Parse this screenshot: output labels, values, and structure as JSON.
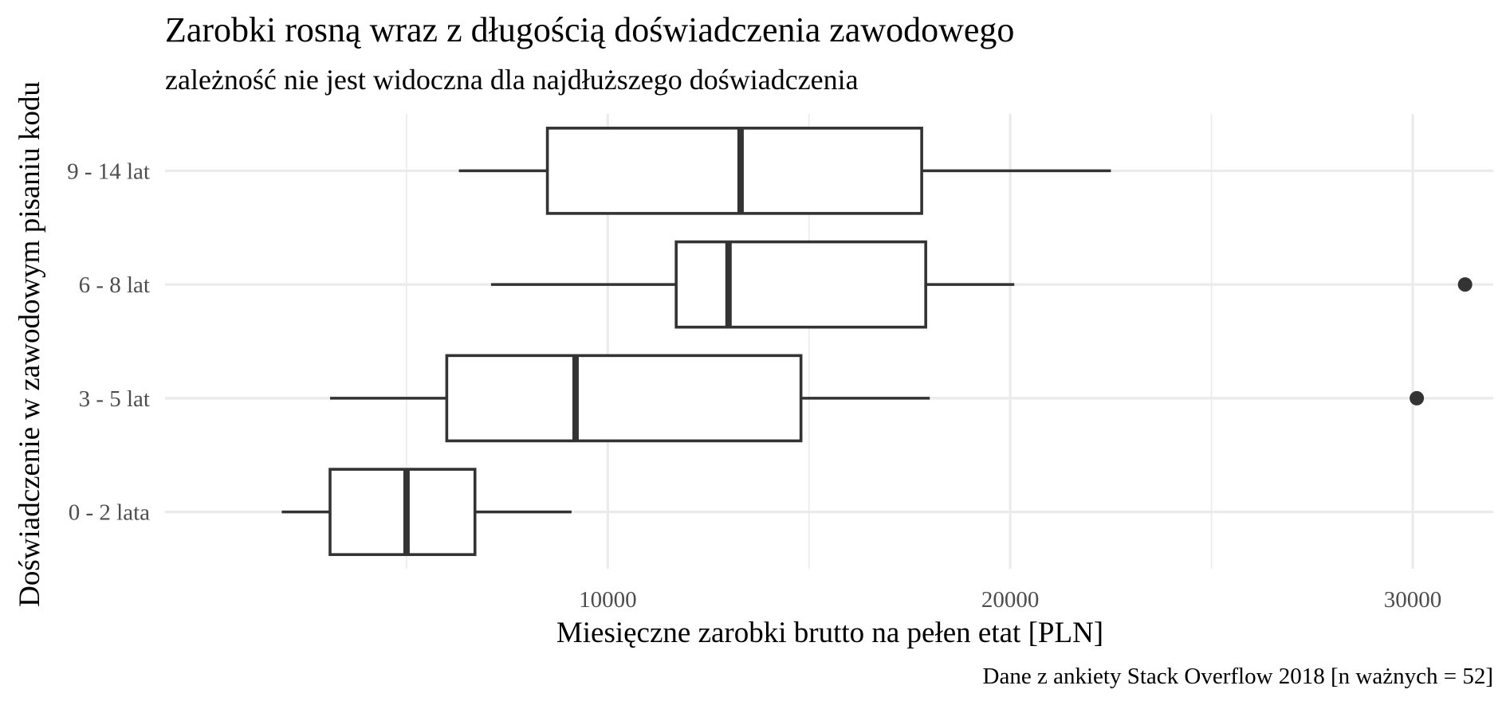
{
  "chart_data": {
    "type": "boxplot",
    "orientation": "horizontal",
    "title": "Zarobki rosną wraz z długością doświadczenia zawodowego",
    "subtitle": "zależność nie jest widoczna dla najdłuższego doświadczenia",
    "xlabel": "Miesięczne zarobki brutto na pełen etat [PLN]",
    "ylabel": "Doświadczenie w zawodowym pisaniu kodu",
    "caption": "Dane z ankiety Stack Overflow 2018 [n ważnych = 52]",
    "xlim": [
      -1000,
      32000
    ],
    "x_ticks": [
      10000,
      20000,
      30000
    ],
    "x_tick_labels": [
      "10000",
      "20000",
      "30000"
    ],
    "x_minor_ticks": [
      5000,
      15000,
      25000
    ],
    "grid": true,
    "categories": [
      "0 - 2 lata",
      "3 - 5 lat",
      "6 - 8 lat",
      "9 - 14 lat"
    ],
    "boxes": [
      {
        "category": "0 - 2 lata",
        "whisker_low": 1900,
        "q1": 3100,
        "median": 5000,
        "q3": 6700,
        "whisker_high": 9100,
        "outliers": []
      },
      {
        "category": "3 - 5 lat",
        "whisker_low": 3100,
        "q1": 6000,
        "median": 9200,
        "q3": 14800,
        "whisker_high": 18000,
        "outliers": [
          30100
        ]
      },
      {
        "category": "6 - 8 lat",
        "whisker_low": 7100,
        "q1": 11700,
        "median": 13000,
        "q3": 17900,
        "whisker_high": 20100,
        "outliers": [
          31300
        ]
      },
      {
        "category": "9 - 14 lat",
        "whisker_low": 6300,
        "q1": 8500,
        "median": 13300,
        "q3": 17800,
        "whisker_high": 22500,
        "outliers": []
      }
    ],
    "colors": {
      "box_line": "#333333",
      "box_fill": "#ffffff",
      "grid": "#ebebeb",
      "tick_text": "#4d4d4d"
    }
  }
}
